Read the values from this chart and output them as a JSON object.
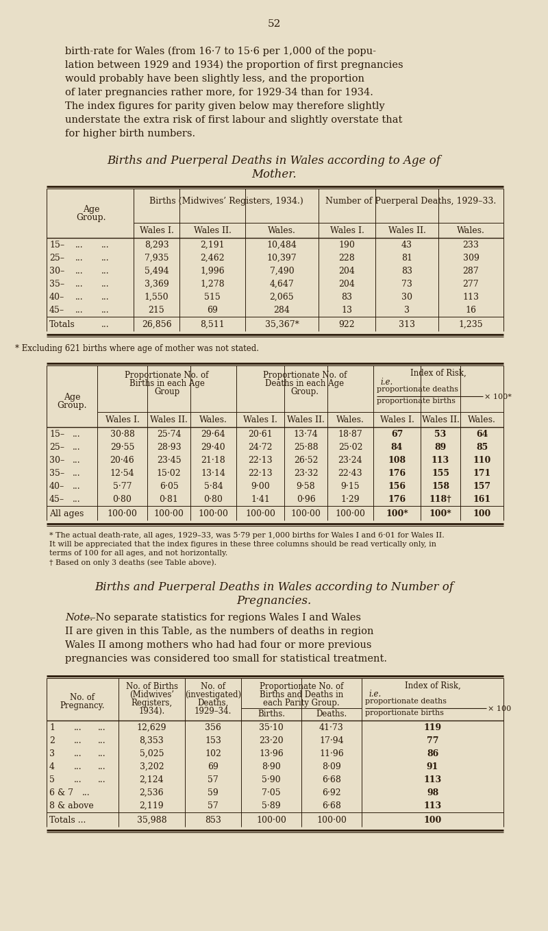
{
  "bg_color": "#e8dfc8",
  "text_color": "#2a1a0a",
  "page_number": "52",
  "intro_text_lines": [
    "birth-rate for Wales (from 16·7 to 15·6 per 1,000 of the popu-",
    "lation between 1929 and 1934) the proportion of first pregnancies",
    "would probably have been slightly less, and the proportion",
    "of later pregnancies rather more, for 1929-34 than for 1934.",
    "The index figures for parity given below may therefore slightly",
    "understate the extra risk of first labour and slightly overstate that",
    "for higher birth numbers."
  ],
  "table1_title_line1": "Births and Puerperal Deaths in Wales according to Age of",
  "table1_title_line2": "Mother.",
  "table1_births_header": "Births (Midwives’ Registers, 1934.)",
  "table1_deaths_header": "Number of Puerperal Deaths, 1929–33.",
  "table1_sub_headers": [
    "Wales I.",
    "Wales II.",
    "Wales.",
    "Wales I.",
    "Wales II.",
    "Wales."
  ],
  "table1_age_header": [
    "Age",
    "Group."
  ],
  "table1_data": [
    [
      "15–",
      "...",
      "...",
      "8,293",
      "2,191",
      "10,484",
      "190",
      "43",
      "233"
    ],
    [
      "25–",
      "...",
      "...",
      "7,935",
      "2,462",
      "10,397",
      "228",
      "81",
      "309"
    ],
    [
      "30–",
      "...",
      "...",
      "5,494",
      "1,996",
      "7,490",
      "204",
      "83",
      "287"
    ],
    [
      "35–",
      "...",
      "...",
      "3,369",
      "1,278",
      "4,647",
      "204",
      "73",
      "277"
    ],
    [
      "40–",
      "...",
      "...",
      "1,550",
      "515",
      "2,065",
      "83",
      "30",
      "113"
    ],
    [
      "45–",
      "...",
      "...",
      "215",
      "69",
      "284",
      "13",
      "3",
      "16"
    ]
  ],
  "table1_totals": [
    "Totals",
    "...",
    "26,856",
    "8,511",
    "35,367*",
    "922",
    "313",
    "1,235"
  ],
  "table1_footnote": "* Excluding 621 births where age of mother was not stated.",
  "table2_births_header": [
    "Proportionate No. of",
    "Births in each Age",
    "Group"
  ],
  "table2_deaths_header": [
    "Proportionate No. of",
    "Deaths in each Age",
    "Group."
  ],
  "table2_index_header": [
    "Index of Risk,",
    "i.e.",
    "proportionate deaths",
    "proportionate births",
    "× 100*"
  ],
  "table2_sub_headers": [
    "Wales I.",
    "Wales II.",
    "Wales.",
    "Wales I.",
    "Wales II.",
    "Wales.",
    "Wales I.",
    "Wales II.",
    "Wales."
  ],
  "table2_age_header": [
    "Age",
    "Group."
  ],
  "table2_data": [
    [
      "15–",
      "...",
      "30·88",
      "25·74",
      "29·64",
      "20·61",
      "13·74",
      "18·87",
      "67",
      "53",
      "64"
    ],
    [
      "25–",
      "...",
      "29·55",
      "28·93",
      "29·40",
      "24·72",
      "25·88",
      "25·02",
      "84",
      "89",
      "85"
    ],
    [
      "30–",
      "...",
      "20·46",
      "23·45",
      "21·18",
      "22·13",
      "26·52",
      "23·24",
      "108",
      "113",
      "110"
    ],
    [
      "35–",
      "...",
      "12·54",
      "15·02",
      "13·14",
      "22·13",
      "23·32",
      "22·43",
      "176",
      "155",
      "171"
    ],
    [
      "40–",
      "...",
      "5·77",
      "6·05",
      "5·84",
      "9·00",
      "9·58",
      "9·15",
      "156",
      "158",
      "157"
    ],
    [
      "45–",
      "...",
      "0·80",
      "0·81",
      "0·80",
      "1·41",
      "0·96",
      "1·29",
      "176",
      "118†",
      "161"
    ]
  ],
  "table2_totals": [
    "All ages",
    "100·00",
    "100·00",
    "100·00",
    "100·00",
    "100·00",
    "100·00",
    "100*",
    "100*",
    "100"
  ],
  "table2_footnotes": [
    "* The actual death-rate, all ages, 1929–33, was 5·79 per 1,000 births for Wales I and 6·01 for Wales II.",
    "It will be appreciated that the index figures in these three columns should be read vertically only, in",
    "terms of 100 for all ages, and not horizontally.",
    "† Based on only 3 deaths (see Table above)."
  ],
  "table3_title_line1": "Births and Puerperal Deaths in Wales according to Number of",
  "table3_title_line2": "Pregnancies.",
  "table3_note_lines": [
    "Note.—No separate statistics for regions Wales I and Wales",
    "II are given in this Table, as the numbers of deaths in region",
    "Wales II among mothers who had had four or more previous",
    "pregnancies was considered too small for statistical treatment."
  ],
  "table3_col1_header": [
    "No. of Births",
    "(Midwives’",
    "Registers,",
    "1934)."
  ],
  "table3_col2_header": [
    "No. of",
    "(investigated)",
    "Deaths,",
    "1929–34."
  ],
  "table3_prop_header": [
    "Proportionate No. of",
    "Births and Deaths in",
    "each Parity Group."
  ],
  "table3_prop_sub": [
    "Births.",
    "Deaths."
  ],
  "table3_index_header": [
    "Index of Risk,",
    "i.e.",
    "proportionate deaths",
    "proportionate births",
    "× 100"
  ],
  "table3_row_header": [
    "No. of",
    "Pregnancy."
  ],
  "table3_data": [
    [
      "1",
      "...",
      "...",
      "12,629",
      "356",
      "35·10",
      "41·73",
      "119"
    ],
    [
      "2",
      "...",
      "...",
      "8,353",
      "153",
      "23·20",
      "17·94",
      "77"
    ],
    [
      "3",
      "...",
      "...",
      "5,025",
      "102",
      "13·96",
      "11·96",
      "86"
    ],
    [
      "4",
      "...",
      "...",
      "3,202",
      "69",
      "8·90",
      "8·09",
      "91"
    ],
    [
      "5",
      "...",
      "...",
      "2,124",
      "57",
      "5·90",
      "6·68",
      "113"
    ],
    [
      "6 & 7",
      "...",
      "2,536",
      "59",
      "7·05",
      "6·92",
      "98"
    ],
    [
      "8 & above",
      "2,119",
      "57",
      "5·89",
      "6·68",
      "113"
    ]
  ],
  "table3_totals": [
    "Totals ...",
    "35,988",
    "853",
    "100·00",
    "100·00",
    "100"
  ]
}
